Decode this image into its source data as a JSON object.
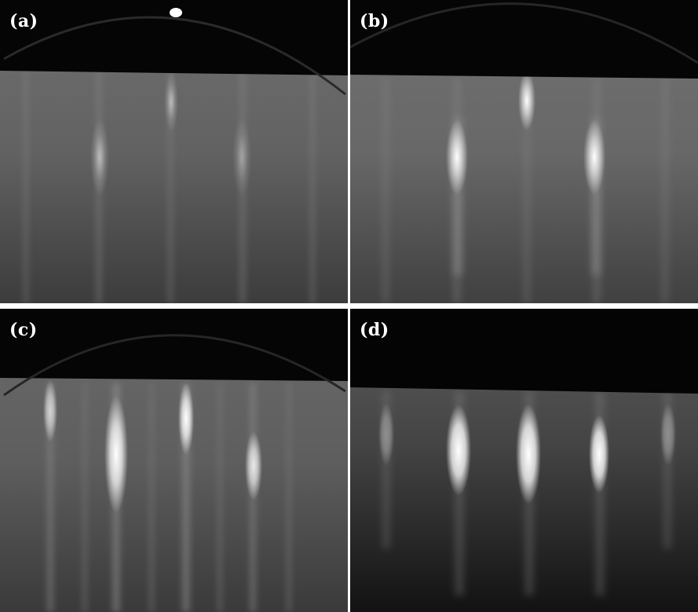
{
  "figure": {
    "panels": [
      {
        "id": "a",
        "label": "(a)"
      },
      {
        "id": "b",
        "label": "(b)"
      },
      {
        "id": "c",
        "label": "(c)"
      },
      {
        "id": "d",
        "label": "(d)"
      }
    ]
  },
  "colors": {
    "background": "#ffffff",
    "shadow": "#000000",
    "screen_gray": "#6e6e6e",
    "streak": "#ffffff"
  }
}
